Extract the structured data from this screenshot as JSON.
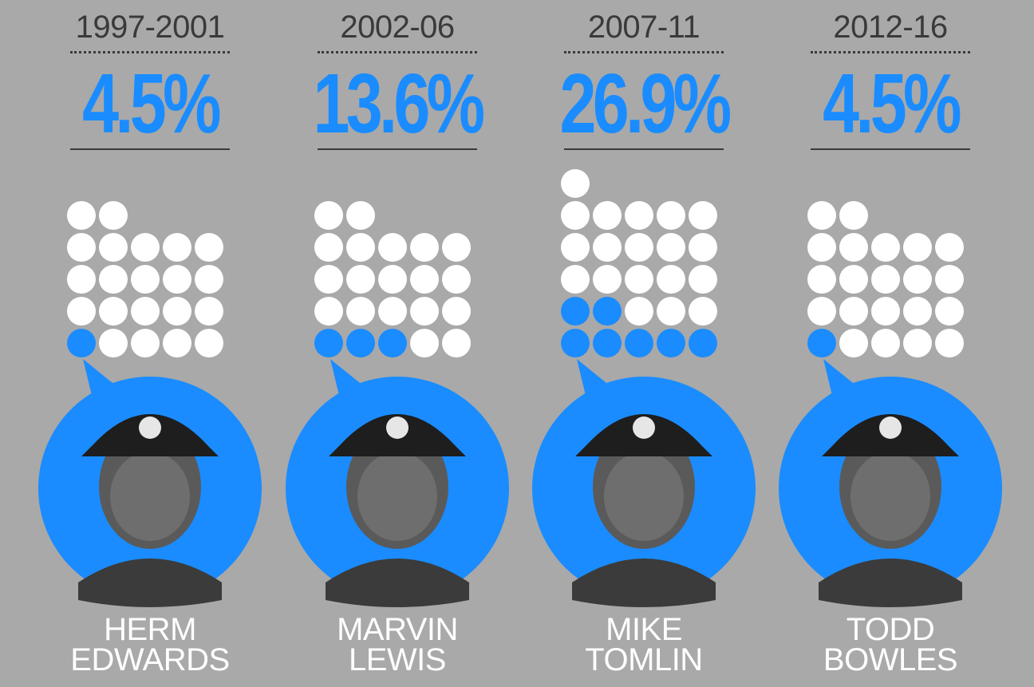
{
  "chart_data": {
    "type": "unit-dot",
    "colors": {
      "hit": "#1a8cff",
      "miss": "#ffffff",
      "background": "#a9a9a9",
      "text": "#3a3a3a",
      "accent": "#1a8cff"
    },
    "panels": [
      {
        "period": "1997-2001",
        "percent_label": "4.5%",
        "percent": 4.5,
        "total": 22,
        "hits": 1,
        "name_first": "HERM",
        "name_last": "EDWARDS",
        "photo_icon": "coach-photo-icon"
      },
      {
        "period": "2002-06",
        "percent_label": "13.6%",
        "percent": 13.6,
        "total": 22,
        "hits": 3,
        "name_first": "MARVIN",
        "name_last": "LEWIS",
        "photo_icon": "coach-photo-icon"
      },
      {
        "period": "2007-11",
        "percent_label": "26.9%",
        "percent": 26.9,
        "total": 26,
        "hits": 7,
        "name_first": "MIKE",
        "name_last": "TOMLIN",
        "photo_icon": "coach-photo-icon"
      },
      {
        "period": "2012-16",
        "percent_label": "4.5%",
        "percent": 4.5,
        "total": 22,
        "hits": 1,
        "name_first": "TODD",
        "name_last": "BOWLES",
        "photo_icon": "coach-photo-icon"
      }
    ]
  }
}
